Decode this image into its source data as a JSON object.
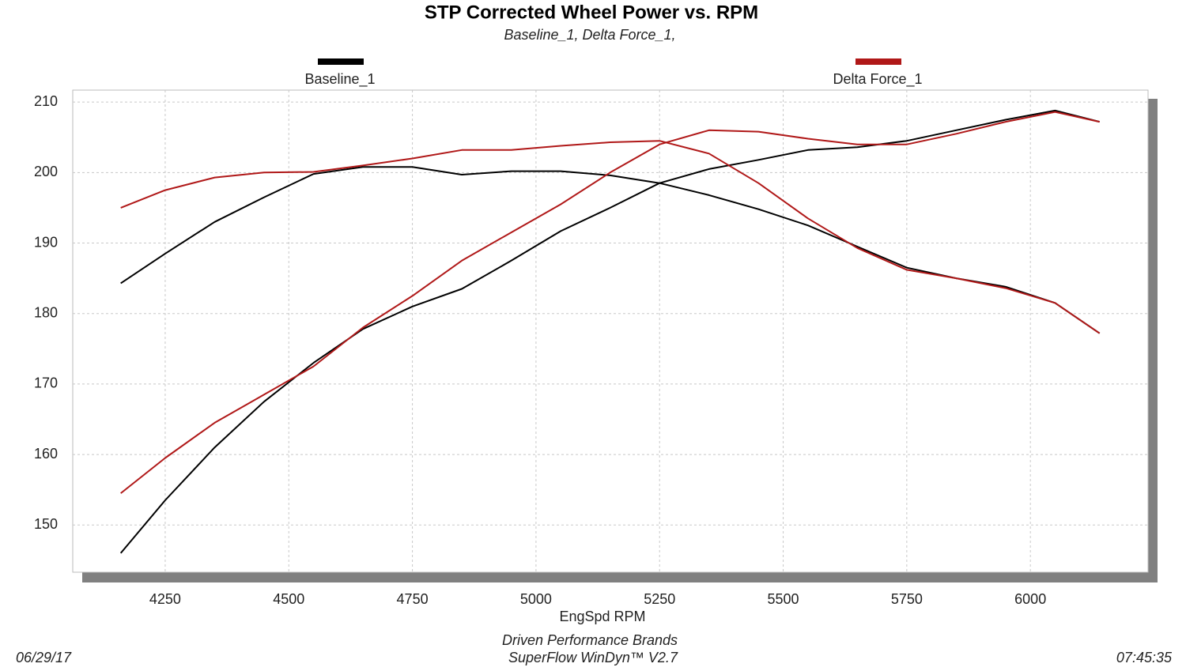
{
  "chart_data": {
    "type": "line",
    "title": "STP Corrected Wheel Power vs. RPM",
    "subtitle": "Baseline_1, Delta Force_1,",
    "x_label": "EngSpd  RPM",
    "footer": [
      "Driven Performance Brands",
      "SuperFlow WinDyn™  V2.7"
    ],
    "date": "06/29/17",
    "time": "07:45:35",
    "x": [
      4160,
      4250,
      4350,
      4450,
      4550,
      4650,
      4750,
      4850,
      4950,
      5050,
      5150,
      5250,
      5350,
      5450,
      5550,
      5650,
      5750,
      5850,
      5950,
      6050,
      6140
    ],
    "series": [
      {
        "name": "Baseline_1",
        "color": "#000000",
        "lines": [
          {
            "values": [
              184.3,
              188.5,
              193,
              196.5,
              199.8,
              200.8,
              200.8,
              199.7,
              200.2,
              200.2,
              199.6,
              198.5,
              196.8,
              194.8,
              192.5,
              189.5,
              186.5,
              185,
              183.8,
              181.5,
              177.2
            ]
          },
          {
            "values": [
              146,
              153.5,
              161,
              167.5,
              173,
              177.8,
              181,
              183.5,
              187.5,
              191.7,
              195,
              198.5,
              200.5,
              201.8,
              203.2,
              203.6,
              204.5,
              206,
              207.5,
              208.8,
              207.2
            ]
          }
        ]
      },
      {
        "name": "Delta Force_1",
        "color": "#b01818",
        "lines": [
          {
            "values": [
              195,
              197.5,
              199.3,
              200,
              200.1,
              201,
              202,
              203.2,
              203.2,
              203.8,
              204.3,
              204.5,
              202.7,
              198.5,
              193.5,
              189.3,
              186.2,
              185,
              183.6,
              181.5,
              177.2
            ]
          },
          {
            "values": [
              154.5,
              159.5,
              164.5,
              168.5,
              172.5,
              178,
              182.5,
              187.5,
              191.5,
              195.5,
              200,
              204,
              206,
              205.8,
              204.8,
              204,
              204,
              205.5,
              207.2,
              208.6,
              207.2
            ]
          }
        ]
      }
    ],
    "xlim": [
      4063,
      6238
    ],
    "ylim": [
      143.3,
      211.7
    ],
    "xticks": [
      4250,
      4500,
      4750,
      5000,
      5250,
      5500,
      5750,
      6000
    ],
    "yticks": [
      150,
      160,
      170,
      180,
      190,
      200,
      210
    ],
    "grid": true
  }
}
